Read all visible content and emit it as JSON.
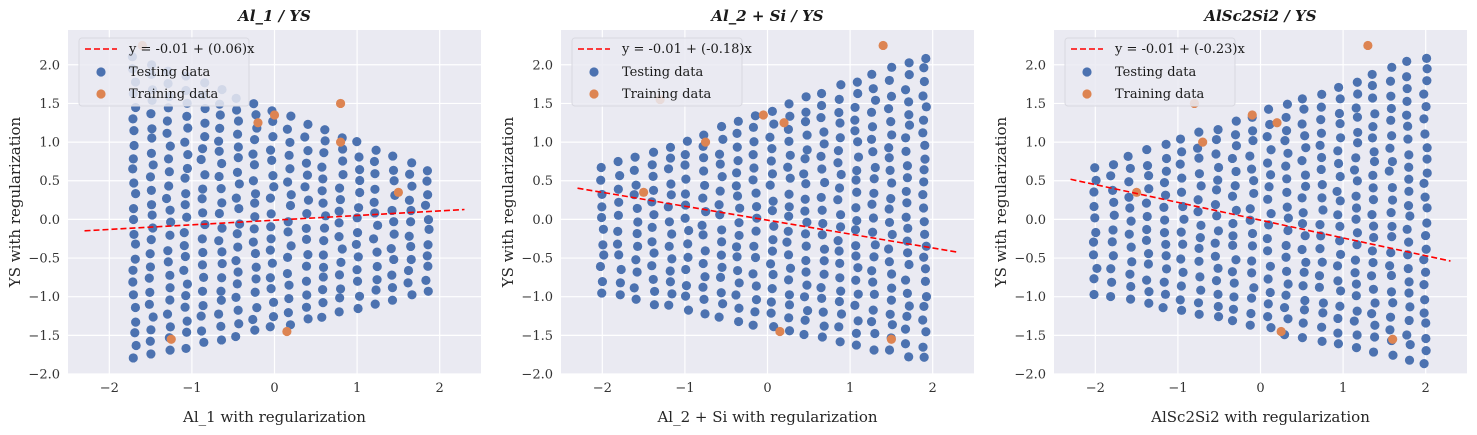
{
  "colors": {
    "panel_bg": "#EAEAF2",
    "grid": "#FFFFFF",
    "testing": "#4C72B0",
    "training": "#DD8452",
    "fit": "#FF0000"
  },
  "chart_data": [
    {
      "type": "scatter",
      "title": "Al_1 / YS",
      "xlabel": "Al_1 with regularization",
      "ylabel": "YS with regularization",
      "xlim": [
        -2.5,
        2.5
      ],
      "ylim": [
        -2.0,
        2.45
      ],
      "xticks": [
        -2,
        -1,
        0,
        1,
        2
      ],
      "yticks": [
        -2.0,
        -1.5,
        -1.0,
        -0.5,
        0.0,
        0.5,
        1.0,
        1.5,
        2.0
      ],
      "grid": true,
      "legend_position": "top-left",
      "fit": {
        "label": "y = -0.01 + (0.06)x",
        "intercept": -0.01,
        "slope": 0.06,
        "x_range": [
          -2.3,
          2.3
        ]
      },
      "testing": {
        "label": "Testing data",
        "x_range": [
          -1.7,
          1.85
        ],
        "y_top_at_ends": [
          2.1,
          0.65
        ],
        "y_bottom_at_ends": [
          -1.8,
          -0.95
        ],
        "columns": 18,
        "rows": 24
      },
      "training": {
        "label": "Training data",
        "points": [
          [
            -1.6,
            2.25
          ],
          [
            -0.2,
            1.25
          ],
          [
            0.0,
            1.35
          ],
          [
            0.8,
            1.5
          ],
          [
            0.8,
            1.0
          ],
          [
            1.5,
            0.35
          ],
          [
            0.15,
            -1.45
          ],
          [
            -1.25,
            -1.55
          ]
        ]
      }
    },
    {
      "type": "scatter",
      "title": "Al_2 + Si / YS",
      "xlabel": "Al_2 + Si with regularization",
      "ylabel": "YS with regularization",
      "xlim": [
        -2.5,
        2.5
      ],
      "ylim": [
        -2.0,
        2.45
      ],
      "xticks": [
        -2,
        -1,
        0,
        1,
        2
      ],
      "yticks": [
        -2.0,
        -1.5,
        -1.0,
        -0.5,
        0.0,
        0.5,
        1.0,
        1.5,
        2.0
      ],
      "grid": true,
      "legend_position": "top-left",
      "fit": {
        "label": "y = -0.01 + (-0.18)x",
        "intercept": -0.01,
        "slope": -0.18,
        "x_range": [
          -2.3,
          2.3
        ]
      },
      "testing": {
        "label": "Testing data",
        "x_range": [
          -2.0,
          1.9
        ],
        "y_top_at_ends": [
          0.65,
          2.1
        ],
        "y_bottom_at_ends": [
          -0.95,
          -1.8
        ],
        "columns": 20,
        "rows": 24
      },
      "training": {
        "label": "Training data",
        "points": [
          [
            -1.3,
            1.55
          ],
          [
            -0.75,
            1.0
          ],
          [
            -0.05,
            1.35
          ],
          [
            0.2,
            1.25
          ],
          [
            1.4,
            2.25
          ],
          [
            -1.5,
            0.35
          ],
          [
            0.15,
            -1.45
          ],
          [
            1.5,
            -1.55
          ]
        ]
      }
    },
    {
      "type": "scatter",
      "title": "AlSc2Si2 / YS",
      "xlabel": "AlSc2Si2 with regularization",
      "ylabel": "YS with regularization",
      "xlim": [
        -2.5,
        2.5
      ],
      "ylim": [
        -2.0,
        2.45
      ],
      "xticks": [
        -2,
        -1,
        0,
        1,
        2
      ],
      "yticks": [
        -2.0,
        -1.5,
        -1.0,
        -0.5,
        0.0,
        0.5,
        1.0,
        1.5,
        2.0
      ],
      "grid": true,
      "legend_position": "top-left",
      "fit": {
        "label": "y = -0.01 + (-0.23)x",
        "intercept": -0.01,
        "slope": -0.23,
        "x_range": [
          -2.3,
          2.3
        ]
      },
      "testing": {
        "label": "Testing data",
        "x_range": [
          -2.0,
          2.0
        ],
        "y_top_at_ends": [
          0.65,
          2.1
        ],
        "y_bottom_at_ends": [
          -0.95,
          -1.85
        ],
        "columns": 20,
        "rows": 24
      },
      "training": {
        "label": "Training data",
        "points": [
          [
            -0.8,
            1.5
          ],
          [
            -0.7,
            1.0
          ],
          [
            -0.1,
            1.35
          ],
          [
            0.2,
            1.25
          ],
          [
            1.3,
            2.25
          ],
          [
            -1.5,
            0.35
          ],
          [
            0.25,
            -1.45
          ],
          [
            1.6,
            -1.55
          ]
        ]
      }
    }
  ]
}
